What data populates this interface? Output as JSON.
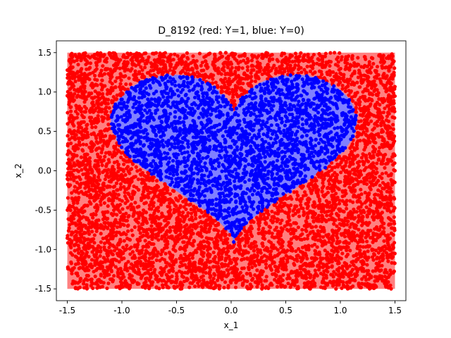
{
  "chart_data": {
    "type": "scatter",
    "title": "D_8192 (red: Y=1, blue: Y=0)",
    "xlabel": "x_1",
    "ylabel": "x_2",
    "xlim": [
      -1.6,
      1.6
    ],
    "ylim": [
      -1.65,
      1.65
    ],
    "x_ticks": [
      "-1.5",
      "-1.0",
      "-0.5",
      "0.0",
      "0.5",
      "1.0",
      "1.5"
    ],
    "y_ticks": [
      "-1.5",
      "-1.0",
      "-0.5",
      "0.0",
      "0.5",
      "1.0",
      "1.5"
    ],
    "grid": false,
    "n_points": 8192,
    "domain": {
      "x_range": [
        -1.5,
        1.5
      ],
      "y_range": [
        -1.5,
        1.5
      ]
    },
    "series": [
      {
        "name": "Y=1",
        "color": "#ff0000",
        "region": "outside heart-shaped region"
      },
      {
        "name": "Y=0",
        "color": "#0000ff",
        "region": "inside heart-shaped region"
      }
    ],
    "heart_region": {
      "x_range": [
        -1.1,
        1.15
      ],
      "y_range": [
        -0.92,
        1.22
      ],
      "lobe_tops_y": 1.22,
      "notch_x": 0.0,
      "notch_y": 1.0,
      "bottom_tip": [
        0.0,
        -0.92
      ]
    },
    "background_fills": {
      "Y=1": "#ff8080",
      "Y=0": "#8080ff"
    }
  }
}
